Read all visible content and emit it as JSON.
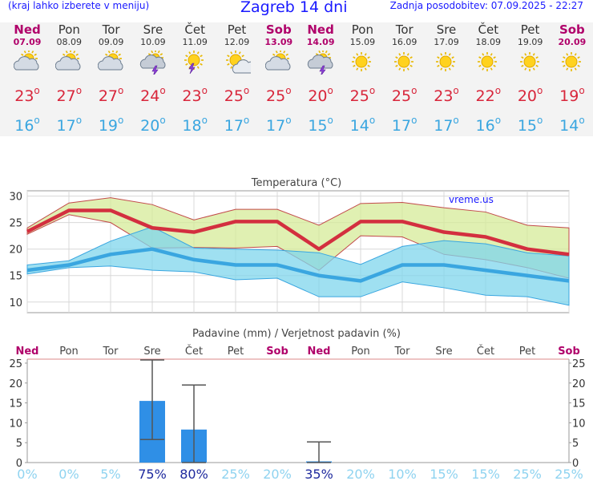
{
  "header": {
    "left": "(kraj lahko izberete v meniju)",
    "title": "Zagreb 14 dni",
    "updated": "Zadnja posodobitev: 07.09.2025 - 22:27"
  },
  "days": [
    {
      "name": "Ned",
      "date": "07.09",
      "weekend": true,
      "icon": "partly-cloudy-icon",
      "tmax": "23",
      "tmin": "16"
    },
    {
      "name": "Pon",
      "date": "08.09",
      "weekend": false,
      "icon": "partly-cloudy-icon",
      "tmax": "27",
      "tmin": "17"
    },
    {
      "name": "Tor",
      "date": "09.09",
      "weekend": false,
      "icon": "partly-cloudy-icon",
      "tmax": "27",
      "tmin": "19"
    },
    {
      "name": "Sre",
      "date": "10.09",
      "weekend": false,
      "icon": "thunderstorm-icon",
      "tmax": "24",
      "tmin": "20"
    },
    {
      "name": "Čet",
      "date": "11.09",
      "weekend": false,
      "icon": "sun-thunderstorm-icon",
      "tmax": "23",
      "tmin": "18"
    },
    {
      "name": "Pet",
      "date": "12.09",
      "weekend": false,
      "icon": "sun-cloud-icon",
      "tmax": "25",
      "tmin": "17"
    },
    {
      "name": "Sob",
      "date": "13.09",
      "weekend": true,
      "icon": "partly-cloudy-icon",
      "tmax": "25",
      "tmin": "17"
    },
    {
      "name": "Ned",
      "date": "14.09",
      "weekend": true,
      "icon": "thunderstorm-icon",
      "tmax": "20",
      "tmin": "15"
    },
    {
      "name": "Pon",
      "date": "15.09",
      "weekend": false,
      "icon": "sun-icon",
      "tmax": "25",
      "tmin": "14"
    },
    {
      "name": "Tor",
      "date": "16.09",
      "weekend": false,
      "icon": "sun-icon",
      "tmax": "25",
      "tmin": "17"
    },
    {
      "name": "Sre",
      "date": "17.09",
      "weekend": false,
      "icon": "sun-icon",
      "tmax": "23",
      "tmin": "17"
    },
    {
      "name": "Čet",
      "date": "18.09",
      "weekend": false,
      "icon": "sun-icon",
      "tmax": "22",
      "tmin": "16"
    },
    {
      "name": "Pet",
      "date": "19.09",
      "weekend": false,
      "icon": "sun-icon",
      "tmax": "20",
      "tmin": "15"
    },
    {
      "name": "Sob",
      "date": "20.09",
      "weekend": true,
      "icon": "sun-icon",
      "tmax": "19",
      "tmin": "14"
    }
  ],
  "colors": {
    "weekend": "#b0006a",
    "tmax": "#d8263b",
    "tmin": "#3aa6e0",
    "bar": "#2f8fe6",
    "pct_dark": "#1f2a9e",
    "pct_light": "#8fd3f0"
  },
  "chart_data": [
    {
      "type": "line",
      "title": "Temperatura (°C)",
      "watermark": "vreme.us",
      "ylim": [
        8,
        31
      ],
      "yticks": [
        10,
        15,
        20,
        25,
        30
      ],
      "grid": true,
      "x": [
        "Ned",
        "Pon",
        "Tor",
        "Sre",
        "Čet",
        "Pet",
        "Sob",
        "Ned",
        "Pon",
        "Tor",
        "Sre",
        "Čet",
        "Pet",
        "Sob"
      ],
      "series": [
        {
          "role": "max",
          "values": [
            23.3,
            27.3,
            27.3,
            24.0,
            23.2,
            25.2,
            25.2,
            20.0,
            25.2,
            25.2,
            23.2,
            22.3,
            20.0,
            19.0
          ]
        },
        {
          "role": "max_upper",
          "values": [
            24.0,
            28.7,
            29.7,
            28.4,
            25.5,
            27.5,
            27.5,
            24.5,
            28.6,
            28.8,
            27.8,
            27.0,
            24.5,
            24.0
          ]
        },
        {
          "role": "max_lower",
          "values": [
            22.8,
            26.5,
            25.0,
            20.2,
            20.3,
            20.2,
            20.5,
            16.0,
            22.5,
            22.3,
            19.0,
            18.0,
            16.5,
            14.5
          ]
        },
        {
          "role": "min",
          "values": [
            16.0,
            17.0,
            19.0,
            20.0,
            18.0,
            17.0,
            17.0,
            15.0,
            14.0,
            17.0,
            17.0,
            16.0,
            15.0,
            14.0
          ]
        },
        {
          "role": "min_upper",
          "values": [
            17.0,
            17.8,
            21.5,
            24.2,
            20.2,
            20.0,
            19.8,
            19.3,
            17.1,
            20.5,
            21.6,
            21.0,
            19.3,
            18.7
          ]
        },
        {
          "role": "min_lower",
          "values": [
            15.3,
            16.5,
            16.8,
            16.0,
            15.7,
            14.2,
            14.5,
            11.0,
            11.0,
            13.8,
            12.7,
            11.3,
            11.0,
            9.4
          ]
        }
      ]
    },
    {
      "type": "bar",
      "title": "Padavine (mm) / Verjetnost padavin (%)",
      "categories": [
        "Ned",
        "Pon",
        "Tor",
        "Sre",
        "Čet",
        "Pet",
        "Sob",
        "Ned",
        "Pon",
        "Tor",
        "Sre",
        "Čet",
        "Pet",
        "Sob"
      ],
      "weekend": [
        true,
        false,
        false,
        false,
        false,
        false,
        true,
        true,
        false,
        false,
        false,
        false,
        false,
        true
      ],
      "values": [
        0,
        0,
        0,
        15.5,
        8.3,
        0,
        0,
        0.3,
        0,
        0,
        0,
        0,
        0,
        0
      ],
      "error_high": [
        null,
        null,
        null,
        25.8,
        19.5,
        null,
        null,
        5.2,
        null,
        null,
        null,
        null,
        null,
        null
      ],
      "error_low": [
        null,
        null,
        null,
        5.8,
        0,
        null,
        null,
        0,
        null,
        null,
        null,
        null,
        null,
        null
      ],
      "probability": [
        "0%",
        "0%",
        "5%",
        "75%",
        "80%",
        "25%",
        "20%",
        "35%",
        "20%",
        "10%",
        "15%",
        "15%",
        "25%",
        "25%"
      ],
      "ylim": [
        0,
        26
      ],
      "yticks": [
        0,
        5,
        10,
        15,
        20,
        25
      ]
    }
  ]
}
